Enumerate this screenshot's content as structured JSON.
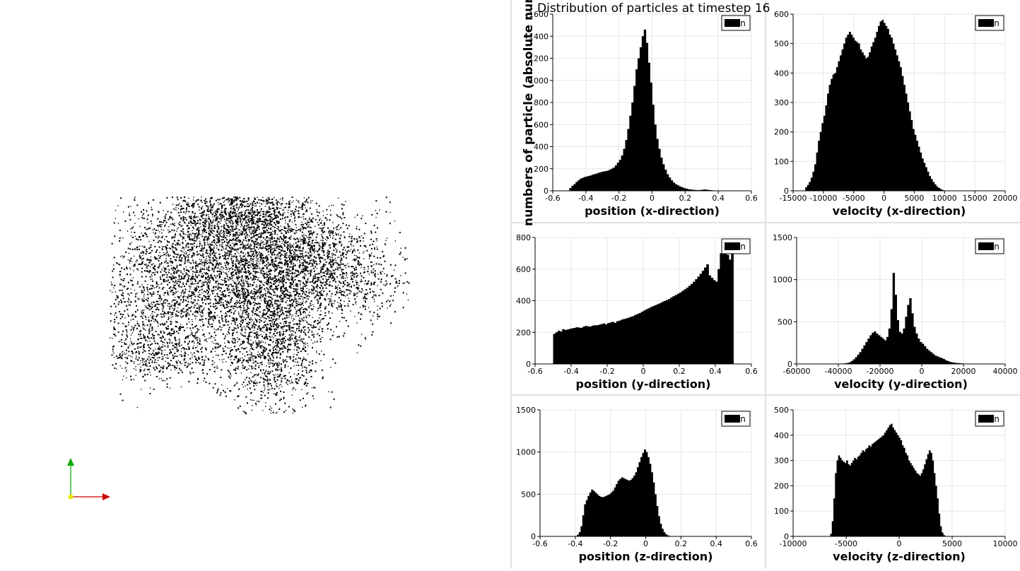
{
  "page_title": "Distribution of particles at timestep 16",
  "shared_ylabel": "numbers of particle (absolute numbe",
  "legend_label": "n",
  "colors": {
    "bars": "#000000",
    "grid": "#e6e6e6",
    "axis_x": "#cc0000",
    "axis_y": "#00aa00",
    "origin": "#e6e600"
  },
  "chart_data": [
    {
      "id": "pos-x",
      "type": "bar",
      "xlabel": "position (x-direction)",
      "xlim": [
        -0.6,
        0.6
      ],
      "xticks": [
        "-0.6",
        "-0.4",
        "-0.2",
        "0",
        "0.2",
        "0.4",
        "0.6"
      ],
      "ylim": [
        0,
        1600
      ],
      "yticks": [
        "0",
        "200",
        "400",
        "600",
        "800",
        "1000",
        "1200",
        "1400",
        "1600"
      ],
      "bin_start": -0.5,
      "bin_width": 0.0125,
      "values": [
        25,
        45,
        60,
        80,
        95,
        110,
        118,
        125,
        130,
        135,
        140,
        148,
        152,
        158,
        165,
        170,
        175,
        178,
        182,
        190,
        200,
        210,
        230,
        255,
        280,
        320,
        380,
        460,
        560,
        680,
        800,
        950,
        1100,
        1200,
        1300,
        1400,
        1460,
        1340,
        1160,
        980,
        780,
        600,
        470,
        380,
        300,
        240,
        190,
        150,
        120,
        95,
        75,
        60,
        50,
        40,
        32,
        25,
        20,
        15,
        12,
        10,
        8,
        7,
        6,
        8,
        10,
        12,
        10,
        8,
        6,
        4,
        3,
        2,
        2,
        1,
        1,
        1,
        0,
        0,
        0,
        0
      ]
    },
    {
      "id": "vel-x",
      "type": "bar",
      "xlabel": "velocity (x-direction)",
      "xlim": [
        -15000,
        20000
      ],
      "xticks": [
        "-15000",
        "-10000",
        "-5000",
        "0",
        "5000",
        "10000",
        "15000",
        "20000"
      ],
      "ylim": [
        0,
        600
      ],
      "yticks": [
        "0",
        "100",
        "200",
        "300",
        "400",
        "500",
        "600"
      ],
      "bin_start": -13000,
      "bin_width": 300,
      "values": [
        12,
        20,
        30,
        45,
        65,
        90,
        130,
        170,
        200,
        230,
        255,
        290,
        330,
        360,
        380,
        395,
        400,
        420,
        440,
        460,
        480,
        500,
        520,
        530,
        540,
        530,
        520,
        510,
        505,
        500,
        480,
        470,
        460,
        450,
        455,
        470,
        490,
        505,
        520,
        540,
        560,
        575,
        580,
        570,
        560,
        550,
        530,
        520,
        500,
        480,
        460,
        440,
        420,
        390,
        360,
        330,
        300,
        270,
        240,
        210,
        190,
        170,
        150,
        130,
        110,
        95,
        80,
        65,
        50,
        40,
        30,
        22,
        15,
        10,
        6,
        3
      ]
    },
    {
      "id": "pos-y",
      "type": "bar",
      "xlabel": "position (y-direction)",
      "xlim": [
        -0.6,
        0.6
      ],
      "xticks": [
        "-0.6",
        "-0.4",
        "-0.2",
        "0",
        "0.2",
        "0.4",
        "0.6"
      ],
      "ylim": [
        0,
        800
      ],
      "yticks": [
        "0",
        "200",
        "400",
        "600",
        "800"
      ],
      "bin_start": -0.5,
      "bin_width": 0.0125,
      "values": [
        190,
        200,
        210,
        205,
        220,
        215,
        218,
        222,
        225,
        228,
        232,
        230,
        228,
        235,
        240,
        238,
        236,
        242,
        245,
        244,
        248,
        252,
        256,
        250,
        258,
        262,
        266,
        260,
        270,
        274,
        280,
        284,
        288,
        292,
        298,
        302,
        310,
        316,
        322,
        330,
        338,
        346,
        352,
        360,
        366,
        372,
        378,
        384,
        392,
        398,
        404,
        410,
        420,
        428,
        436,
        444,
        452,
        462,
        472,
        482,
        494,
        506,
        520,
        536,
        552,
        570,
        590,
        610,
        630,
        560,
        545,
        530,
        520,
        600,
        700,
        760,
        720,
        690,
        660,
        700
      ]
    },
    {
      "id": "vel-y",
      "type": "bar",
      "xlabel": "velocity (y-direction)",
      "xlim": [
        -60000,
        40000
      ],
      "xticks": [
        "-60000",
        "-40000",
        "-20000",
        "0",
        "20000",
        "40000"
      ],
      "ylim": [
        0,
        1500
      ],
      "yticks": [
        "0",
        "500",
        "1000",
        "1500"
      ],
      "bin_start": -38000,
      "bin_width": 1000,
      "values": [
        5,
        8,
        12,
        20,
        35,
        55,
        80,
        110,
        140,
        180,
        220,
        260,
        300,
        340,
        370,
        385,
        360,
        340,
        320,
        300,
        280,
        320,
        420,
        650,
        1080,
        820,
        520,
        380,
        360,
        420,
        560,
        700,
        780,
        600,
        440,
        360,
        300,
        260,
        240,
        210,
        180,
        160,
        140,
        120,
        100,
        90,
        80,
        70,
        60,
        45,
        35,
        25,
        20,
        15,
        12,
        10,
        8,
        6,
        4,
        3,
        2,
        2,
        1,
        1,
        1,
        0,
        0,
        0,
        0,
        0,
        0,
        0,
        0,
        0,
        0
      ]
    },
    {
      "id": "pos-z",
      "type": "bar",
      "xlabel": "position (z-direction)",
      "xlim": [
        -0.6,
        0.6
      ],
      "xticks": [
        "-0.6",
        "-0.4",
        "-0.2",
        "0",
        "0.2",
        "0.4",
        "0.6"
      ],
      "ylim": [
        0,
        1500
      ],
      "yticks": [
        "0",
        "500",
        "1000",
        "1500"
      ],
      "bin_start": -0.4,
      "bin_width": 0.01,
      "values": [
        5,
        20,
        50,
        120,
        250,
        380,
        430,
        480,
        520,
        555,
        540,
        520,
        500,
        480,
        470,
        465,
        470,
        480,
        490,
        500,
        520,
        540,
        580,
        620,
        660,
        680,
        700,
        690,
        680,
        670,
        660,
        670,
        690,
        720,
        760,
        820,
        880,
        940,
        990,
        1030,
        1000,
        940,
        860,
        760,
        640,
        500,
        360,
        240,
        150,
        90,
        50,
        25,
        12,
        6,
        3,
        1,
        0,
        0,
        0,
        0,
        0,
        0,
        0,
        0,
        0,
        0,
        0,
        0,
        0,
        0
      ]
    },
    {
      "id": "vel-z",
      "type": "bar",
      "xlabel": "velocity (z-direction)",
      "xlim": [
        -10000,
        10000
      ],
      "xticks": [
        "-10000",
        "-5000",
        "0",
        "5000",
        "10000"
      ],
      "ylim": [
        0,
        500
      ],
      "yticks": [
        "0",
        "100",
        "200",
        "300",
        "400",
        "500"
      ],
      "bin_start": -6500,
      "bin_width": 150,
      "values": [
        10,
        60,
        150,
        250,
        300,
        320,
        310,
        300,
        295,
        290,
        300,
        285,
        280,
        290,
        300,
        310,
        305,
        315,
        320,
        330,
        340,
        335,
        345,
        350,
        360,
        355,
        365,
        370,
        375,
        380,
        385,
        390,
        395,
        400,
        410,
        420,
        430,
        440,
        445,
        430,
        420,
        410,
        400,
        390,
        380,
        360,
        350,
        330,
        320,
        300,
        290,
        280,
        270,
        260,
        250,
        245,
        240,
        250,
        265,
        285,
        305,
        325,
        340,
        330,
        300,
        250,
        200,
        150,
        90,
        40,
        15,
        5
      ]
    }
  ]
}
